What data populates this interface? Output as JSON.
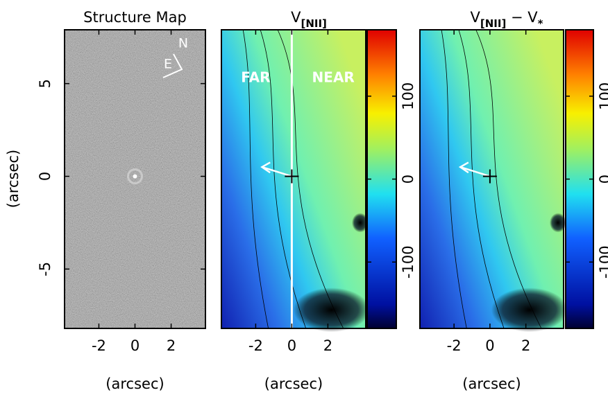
{
  "chart_data": [
    {
      "type": "image",
      "title_parts": [
        {
          "text": "Structure Map"
        }
      ],
      "xlabel": "(arcsec)",
      "ylabel": "(arcsec)",
      "xlim": [
        -3.9,
        3.9
      ],
      "ylim": [
        -8.2,
        7.9
      ],
      "xticks": [
        -2,
        0,
        2
      ],
      "yticks": [
        -5,
        0,
        5
      ],
      "annotations": [
        "E",
        "N"
      ]
    },
    {
      "type": "image",
      "title_parts": [
        {
          "text": "V"
        },
        {
          "text": "[NII]",
          "sub": true
        }
      ],
      "xlabel": "(arcsec)",
      "xlim": [
        -3.9,
        4.1
      ],
      "ylim": [
        -8.2,
        7.9
      ],
      "xticks": [
        -2,
        0,
        2
      ],
      "clim": [
        -180,
        180
      ],
      "cticks": [
        -100,
        0,
        100
      ],
      "annotations": [
        "FAR",
        "NEAR"
      ]
    },
    {
      "type": "image",
      "title_parts": [
        {
          "text": "V"
        },
        {
          "text": "[NII]",
          "sub": true
        },
        {
          "text": " − V"
        },
        {
          "text": "*",
          "sub": true
        }
      ],
      "xlabel": "(arcsec)",
      "xlim": [
        -3.9,
        4.1
      ],
      "ylim": [
        -8.2,
        7.9
      ],
      "xticks": [
        -2,
        0,
        2
      ],
      "clim": [
        -180,
        180
      ],
      "cticks": [
        -100,
        0,
        100
      ]
    }
  ]
}
